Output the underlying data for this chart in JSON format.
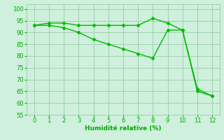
{
  "x": [
    0,
    1,
    2,
    3,
    4,
    5,
    6,
    7,
    8,
    9,
    10,
    11,
    12
  ],
  "line1": [
    93,
    94,
    94,
    93,
    93,
    93,
    93,
    93,
    96,
    94,
    91,
    66,
    63
  ],
  "line2": [
    93,
    93,
    92,
    90,
    87,
    85,
    83,
    81,
    79,
    91,
    91,
    65,
    63
  ],
  "line_color": "#00bb00",
  "marker": "D",
  "marker_size": 2.5,
  "xlabel": "Humidité relative (%)",
  "xlim": [
    -0.5,
    12.5
  ],
  "ylim": [
    55,
    102
  ],
  "yticks": [
    55,
    60,
    65,
    70,
    75,
    80,
    85,
    90,
    95,
    100
  ],
  "xticks": [
    0,
    1,
    2,
    3,
    4,
    5,
    6,
    7,
    8,
    9,
    10,
    11,
    12
  ],
  "bg_color": "#cef0dc",
  "grid_color": "#99ccaa",
  "tick_color": "#00aa00",
  "label_color": "#00aa00",
  "linewidth": 1.0
}
